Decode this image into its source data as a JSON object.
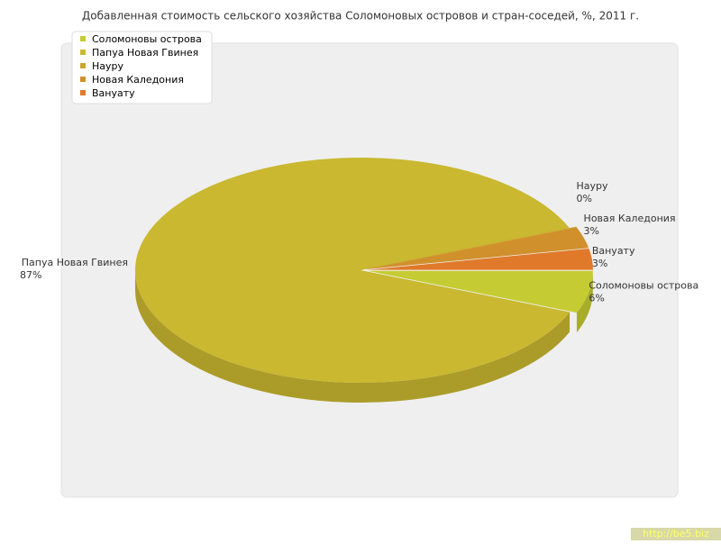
{
  "chart_data": {
    "type": "pie",
    "title": "Добавленная стоимость сельского хозяйства Соломоновых островов и стран-соседей, %, 2011 г.",
    "categories": [
      "Соломоновы острова",
      "Папуа Новая Гвинея",
      "Науру",
      "Новая Каледония",
      "Вануату"
    ],
    "values": [
      6,
      87,
      0,
      3,
      3
    ],
    "value_labels": [
      "6%",
      "87%",
      "0%",
      "3%",
      "3%"
    ],
    "colors": [
      "#c5cc33",
      "#c9b830",
      "#cda52f",
      "#d0902c",
      "#e07a2a"
    ],
    "legend": "top-left"
  },
  "watermark": "http://be5.biz"
}
